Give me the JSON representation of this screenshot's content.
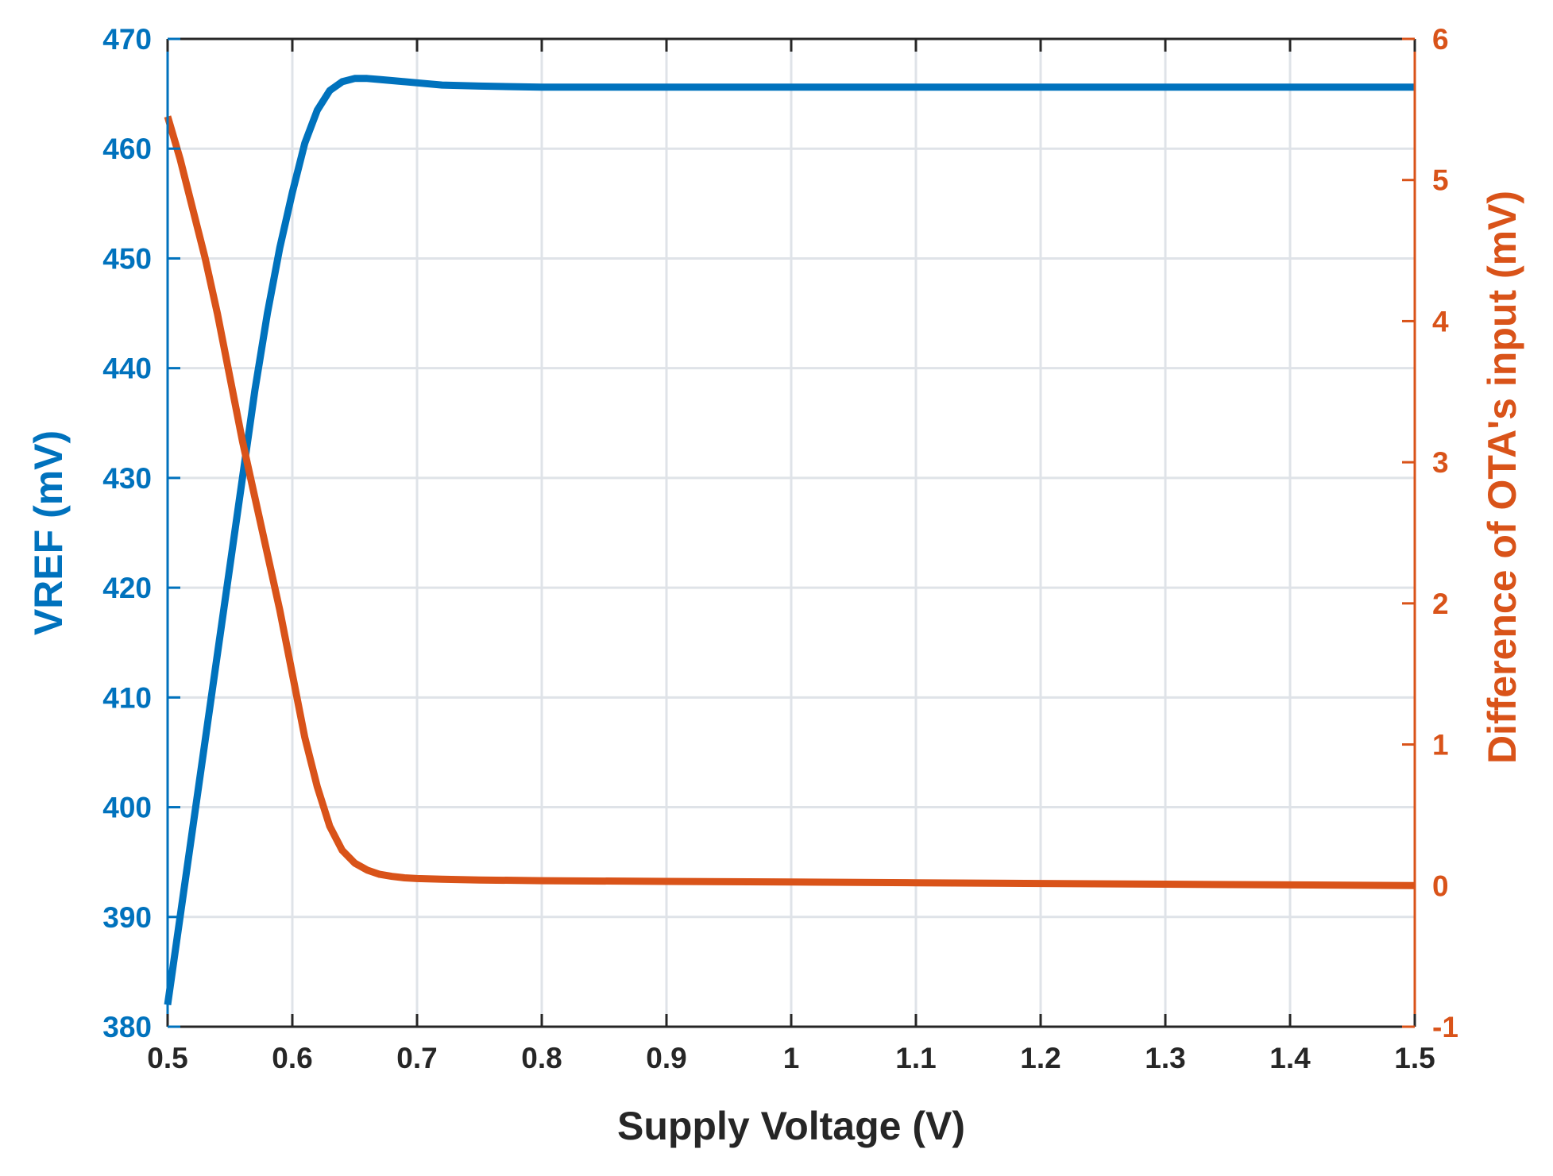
{
  "chart_data": {
    "type": "line",
    "title": "",
    "xlabel": "Supply Voltage (V)",
    "ylabel_left": "VREF (mV)",
    "ylabel_right": "Difference of OTA's input (mV)",
    "xlim": [
      0.5,
      1.5
    ],
    "ylim_left": [
      380,
      470
    ],
    "ylim_right": [
      -1,
      6
    ],
    "x_ticks": [
      "0.5",
      "0.6",
      "0.7",
      "0.8",
      "0.9",
      "1",
      "1.1",
      "1.2",
      "1.3",
      "1.4",
      "1.5"
    ],
    "y_left_ticks": [
      "380",
      "390",
      "400",
      "410",
      "420",
      "430",
      "440",
      "450",
      "460",
      "470"
    ],
    "y_right_ticks": [
      "-1",
      "0",
      "1",
      "2",
      "3",
      "4",
      "5",
      "6"
    ],
    "grid": true,
    "colors": {
      "left_axis": "#0072BD",
      "right_axis": "#D95319",
      "x_axis": "#262626",
      "grid": "#dfe3e8"
    },
    "series": [
      {
        "axis": "left",
        "color": "#0072BD",
        "x": [
          0.5,
          0.51,
          0.52,
          0.53,
          0.54,
          0.55,
          0.56,
          0.57,
          0.58,
          0.59,
          0.6,
          0.61,
          0.62,
          0.63,
          0.64,
          0.65,
          0.66,
          0.67,
          0.68,
          0.7,
          0.72,
          0.75,
          0.8,
          0.9,
          1.0,
          1.1,
          1.2,
          1.3,
          1.4,
          1.5
        ],
        "y": [
          382,
          390,
          398,
          406,
          414,
          422,
          430,
          438,
          445,
          451,
          456,
          460.5,
          463.5,
          465.3,
          466.1,
          466.4,
          466.4,
          466.3,
          466.2,
          466.0,
          465.8,
          465.7,
          465.6,
          465.6,
          465.6,
          465.6,
          465.6,
          465.6,
          465.6,
          465.6
        ]
      },
      {
        "axis": "right",
        "color": "#D95319",
        "x": [
          0.5,
          0.51,
          0.52,
          0.53,
          0.54,
          0.55,
          0.56,
          0.57,
          0.58,
          0.59,
          0.6,
          0.61,
          0.62,
          0.63,
          0.64,
          0.65,
          0.66,
          0.67,
          0.68,
          0.69,
          0.7,
          0.72,
          0.75,
          0.8,
          0.9,
          1.0,
          1.1,
          1.2,
          1.3,
          1.4,
          1.5
        ],
        "y": [
          5.45,
          5.15,
          4.8,
          4.45,
          4.05,
          3.6,
          3.15,
          2.75,
          2.35,
          1.95,
          1.5,
          1.05,
          0.7,
          0.42,
          0.25,
          0.16,
          0.11,
          0.08,
          0.065,
          0.055,
          0.05,
          0.045,
          0.04,
          0.035,
          0.03,
          0.025,
          0.02,
          0.015,
          0.01,
          0.005,
          0.0
        ]
      }
    ]
  }
}
